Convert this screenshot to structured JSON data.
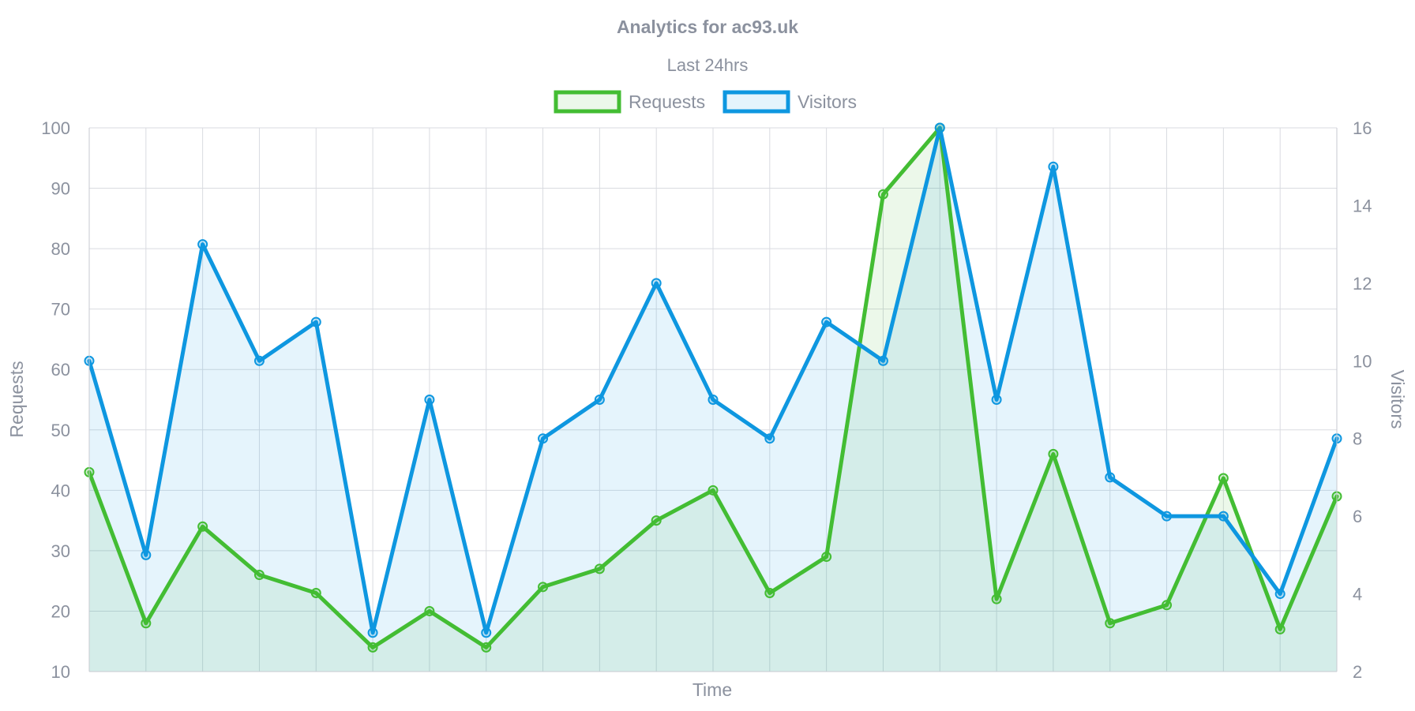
{
  "chart_data": {
    "type": "line",
    "title": "Analytics for ac93.uk",
    "subtitle": "Last 24hrs",
    "xlabel": "Time",
    "ylabel_left": "Requests",
    "ylabel_right": "Visitors",
    "ylim_left": [
      10,
      100
    ],
    "ylim_right": [
      2,
      16
    ],
    "yticks_left": [
      10,
      20,
      30,
      40,
      50,
      60,
      70,
      80,
      90,
      100
    ],
    "yticks_right": [
      2,
      4,
      6,
      8,
      10,
      12,
      14,
      16
    ],
    "grid": true,
    "legend_position": "top",
    "series": [
      {
        "name": "Requests",
        "axis": "left",
        "color": "#43bd33",
        "fill": "rgba(67,189,51,0.10)",
        "values": [
          43,
          18,
          34,
          26,
          23,
          14,
          20,
          14,
          24,
          27,
          35,
          40,
          23,
          29,
          89,
          100,
          22,
          46,
          18,
          21,
          42,
          17,
          39
        ]
      },
      {
        "name": "Visitors",
        "axis": "right",
        "color": "#0e97e0",
        "fill": "rgba(14,151,224,0.11)",
        "values": [
          10,
          5,
          13,
          10,
          11,
          3,
          9,
          3,
          8,
          9,
          12,
          9,
          8,
          11,
          10,
          16,
          9,
          15,
          7,
          6,
          6,
          4,
          8
        ]
      }
    ]
  }
}
